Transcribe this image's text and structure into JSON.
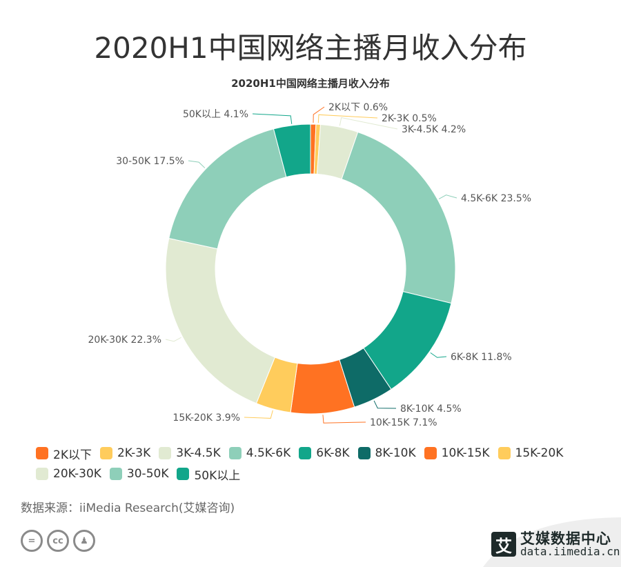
{
  "page": {
    "title": "2020H1中国网络主播月收入分布",
    "source": "数据来源：iiMedia Research(艾媒咨询)",
    "cc_icons": [
      "equals-icon",
      "cc-icon",
      "person-icon"
    ],
    "cc_glyphs": [
      "=",
      "cc",
      "♟"
    ],
    "brand_logo_glyph": "艾",
    "brand_name": "艾媒数据中心",
    "brand_url": "data.iimedia.cn"
  },
  "chart_data": {
    "type": "pie",
    "variant": "donut",
    "title": "2020H1中国网络主播月收入分布",
    "categories": [
      "2K以下",
      "2K-3K",
      "3K-4.5K",
      "4.5K-6K",
      "6K-8K",
      "8K-10K",
      "10K-15K",
      "15K-20K",
      "20K-30K",
      "30-50K",
      "50K以上"
    ],
    "values": [
      0.6,
      0.5,
      4.2,
      23.5,
      11.8,
      4.5,
      7.1,
      3.9,
      22.3,
      17.5,
      4.1
    ],
    "unit": "%",
    "colors": [
      "#FF7222",
      "#FFCC5C",
      "#E1EAD2",
      "#8ECFB9",
      "#12A68A",
      "#0E6B67",
      "#FF7222",
      "#FFCC5C",
      "#E1EAD2",
      "#8ECFB9",
      "#12A68A"
    ],
    "data_labels": [
      "2K以下 0.6%",
      "2K-3K 0.5%",
      "3K-4.5K 4.2%",
      "4.5K-6K 23.5%",
      "6K-8K 11.8%",
      "8K-10K 4.5%",
      "10K-15K 7.1%",
      "15K-20K 3.9%",
      "20K-30K 22.3%",
      "30-50K 17.5%",
      "50K以上 4.1%"
    ],
    "legend_position": "bottom-left"
  }
}
